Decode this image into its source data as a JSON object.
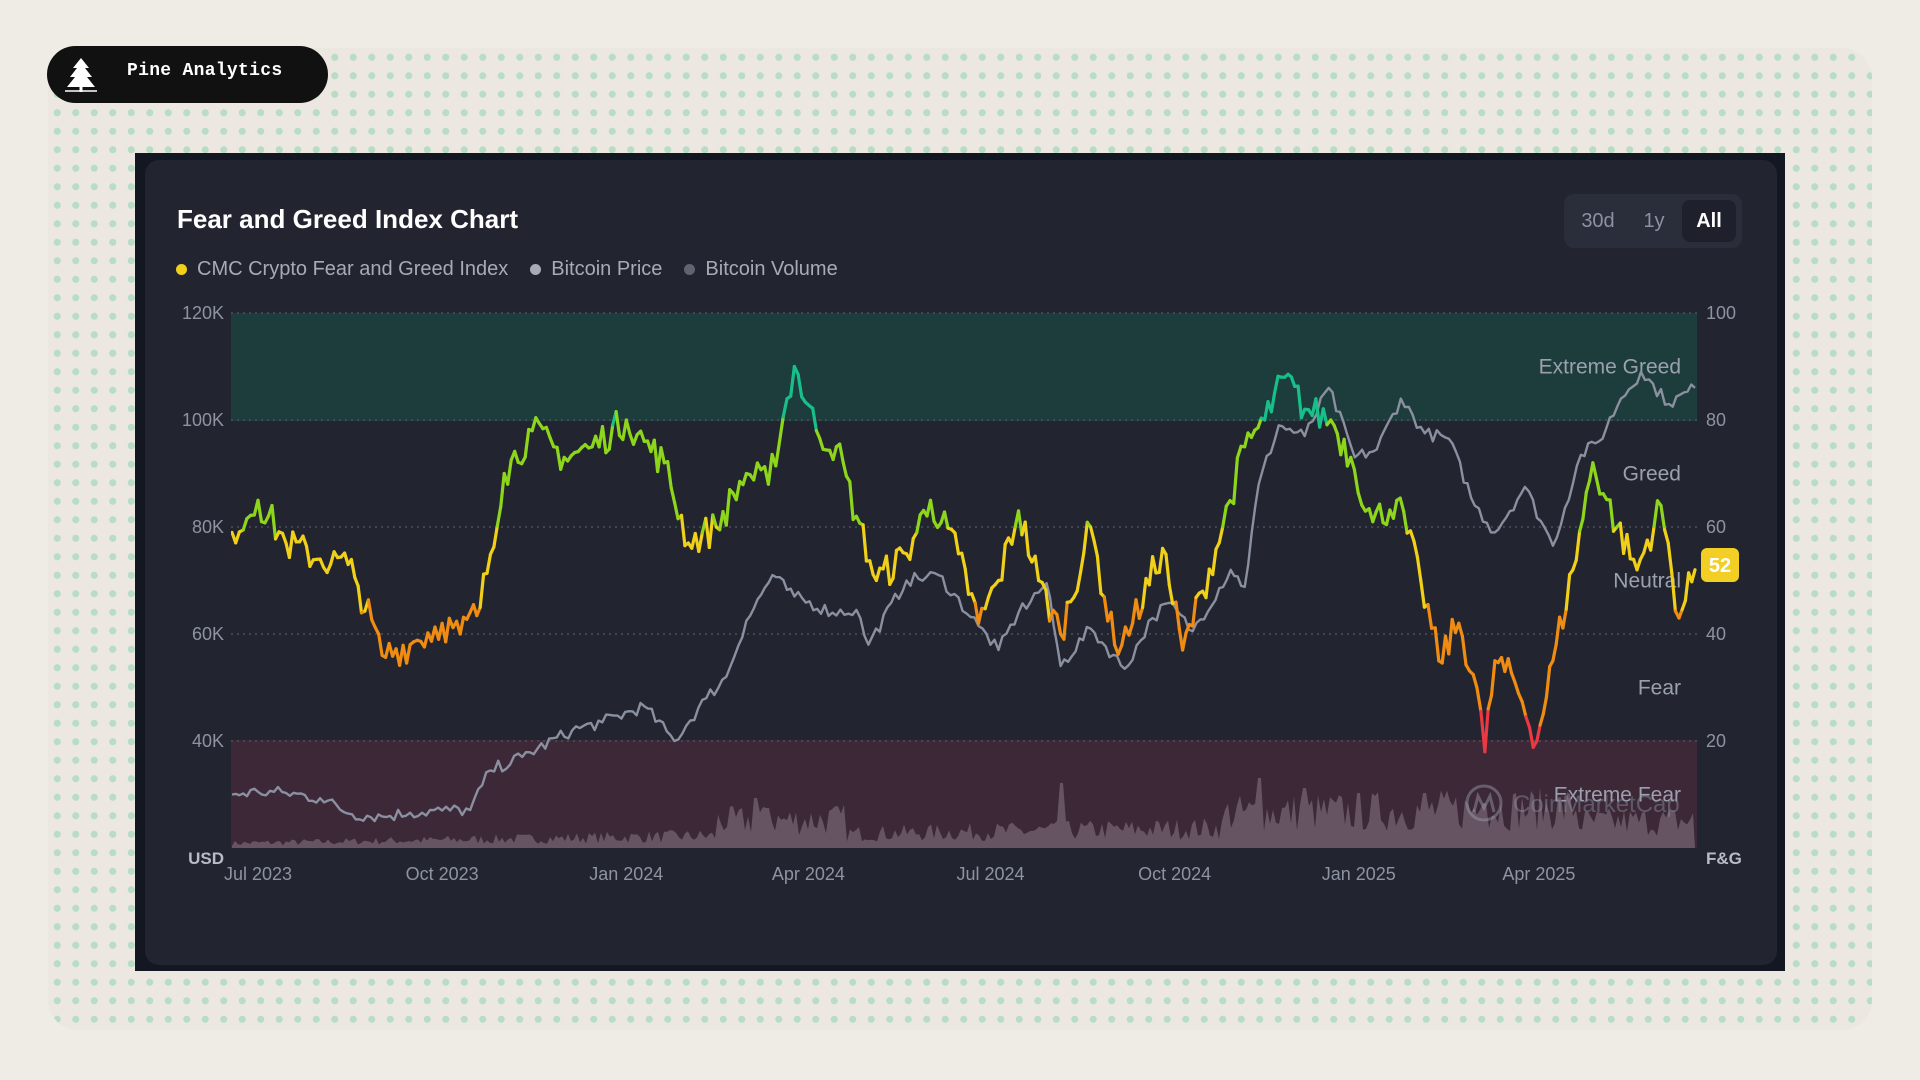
{
  "brand": {
    "name": "Pine Analytics",
    "icon": "pine-tree-icon"
  },
  "controls": {
    "ranges": [
      {
        "label": "30d",
        "active": false
      },
      {
        "label": "1y",
        "active": false
      },
      {
        "label": "All",
        "active": true
      }
    ]
  },
  "colors": {
    "fng_extreme_greed": "#17c08a",
    "fng_greed": "#8ed61c",
    "fng_neutral": "#f0d019",
    "fng_fear": "#f08c12",
    "fng_extreme_fear": "#ea3943",
    "bitcoin_price": "#8a90a0",
    "bitcoin_volume": "#6d5c6a",
    "current_badge": "#f3cf26"
  },
  "chart_data": {
    "type": "line",
    "title": "Fear and Greed Index Chart",
    "series_names": [
      "CMC Crypto Fear and Greed Index",
      "Bitcoin Price",
      "Bitcoin Volume"
    ],
    "x_ticks": [
      "Jul 2023",
      "Oct 2023",
      "Jan 2024",
      "Apr 2024",
      "Jul 2024",
      "Oct 2024",
      "Jan 2025",
      "Apr 2025"
    ],
    "left_axis": {
      "unit": "USD",
      "ticks": [
        "120K",
        "100K",
        "80K",
        "60K",
        "40K"
      ],
      "ylim": [
        20000,
        120000
      ]
    },
    "right_axis": {
      "unit": "F&G",
      "ticks": [
        "100",
        "80",
        "60",
        "40",
        "20"
      ],
      "ylim": [
        0,
        100
      ]
    },
    "zones": [
      {
        "label": "Extreme Greed",
        "range": [
          80,
          100
        ]
      },
      {
        "label": "Greed",
        "range": [
          60,
          80
        ]
      },
      {
        "label": "Neutral",
        "range": [
          40,
          60
        ]
      },
      {
        "label": "Fear",
        "range": [
          20,
          40
        ]
      },
      {
        "label": "Extreme Fear",
        "range": [
          0,
          20
        ]
      }
    ],
    "current_value": "52",
    "watermark": "CoinMarketCap",
    "fear_greed": {
      "dates": [
        "2023-06-18",
        "2023-07-01",
        "2023-07-15",
        "2023-08-01",
        "2023-08-15",
        "2023-08-20",
        "2023-09-01",
        "2023-09-15",
        "2023-10-01",
        "2023-10-10",
        "2023-10-20",
        "2023-11-01",
        "2023-11-15",
        "2023-12-01",
        "2023-12-15",
        "2024-01-01",
        "2024-01-10",
        "2024-01-20",
        "2024-02-01",
        "2024-02-15",
        "2024-03-01",
        "2024-03-12",
        "2024-03-25",
        "2024-04-05",
        "2024-04-15",
        "2024-04-25",
        "2024-05-05",
        "2024-05-20",
        "2024-06-01",
        "2024-06-15",
        "2024-06-25",
        "2024-07-05",
        "2024-07-15",
        "2024-07-25",
        "2024-08-05",
        "2024-08-20",
        "2024-09-01",
        "2024-09-10",
        "2024-09-25",
        "2024-10-05",
        "2024-10-15",
        "2024-10-25",
        "2024-11-05",
        "2024-11-15",
        "2024-11-25",
        "2024-12-05",
        "2024-12-18",
        "2024-12-28",
        "2025-01-08",
        "2025-01-20",
        "2025-02-01",
        "2025-02-10",
        "2025-02-20",
        "2025-03-01",
        "2025-03-05",
        "2025-03-10",
        "2025-03-20",
        "2025-03-31",
        "2025-04-08",
        "2025-04-18",
        "2025-04-28",
        "2025-05-10",
        "2025-05-20",
        "2025-06-01",
        "2025-06-10",
        "2025-06-18"
      ],
      "values": [
        59,
        65,
        57,
        54,
        53,
        49,
        36,
        38,
        42,
        40,
        45,
        70,
        78,
        73,
        75,
        80,
        76,
        72,
        57,
        60,
        70,
        68,
        90,
        78,
        75,
        62,
        50,
        55,
        65,
        55,
        42,
        50,
        63,
        50,
        40,
        60,
        38,
        42,
        56,
        37,
        48,
        60,
        75,
        80,
        88,
        82,
        80,
        73,
        61,
        65,
        50,
        35,
        42,
        30,
        18,
        35,
        31,
        20,
        35,
        52,
        72,
        60,
        52,
        64,
        43,
        52
      ]
    },
    "bitcoin_price_usd": {
      "dates": [
        "2023-06-18",
        "2023-07-01",
        "2023-07-15",
        "2023-08-01",
        "2023-08-17",
        "2023-09-01",
        "2023-09-15",
        "2023-10-01",
        "2023-10-15",
        "2023-10-25",
        "2023-11-10",
        "2023-12-05",
        "2023-12-20",
        "2024-01-10",
        "2024-01-25",
        "2024-02-10",
        "2024-02-20",
        "2024-03-01",
        "2024-03-14",
        "2024-03-25",
        "2024-04-13",
        "2024-04-25",
        "2024-05-01",
        "2024-05-20",
        "2024-06-05",
        "2024-06-25",
        "2024-07-05",
        "2024-07-15",
        "2024-07-29",
        "2024-08-05",
        "2024-08-20",
        "2024-09-06",
        "2024-09-20",
        "2024-09-28",
        "2024-10-10",
        "2024-10-29",
        "2024-11-05",
        "2024-11-12",
        "2024-11-22",
        "2024-12-05",
        "2024-12-17",
        "2024-12-30",
        "2025-01-10",
        "2025-01-22",
        "2025-02-03",
        "2025-02-15",
        "2025-02-28",
        "2025-03-10",
        "2025-03-25",
        "2025-04-08",
        "2025-04-22",
        "2025-05-01",
        "2025-05-12",
        "2025-05-22",
        "2025-06-05",
        "2025-06-18"
      ],
      "values": [
        30000,
        30500,
        30300,
        29300,
        26300,
        25900,
        26600,
        27000,
        27100,
        34500,
        37000,
        42000,
        43500,
        46500,
        40000,
        48000,
        52000,
        62500,
        71000,
        67000,
        64000,
        64500,
        58000,
        70000,
        71000,
        61500,
        57000,
        64000,
        69500,
        54000,
        61000,
        53500,
        63000,
        65800,
        60500,
        72000,
        68800,
        88000,
        99000,
        97000,
        106000,
        93000,
        94500,
        104000,
        97500,
        96500,
        84000,
        79000,
        87500,
        76500,
        93500,
        96000,
        104000,
        109000,
        103000,
        106000
      ]
    },
    "bitcoin_volume_note": "Bitcoin volume is drawn as a shaded band along the bottom of the plot with taller spikes during high activity periods."
  }
}
